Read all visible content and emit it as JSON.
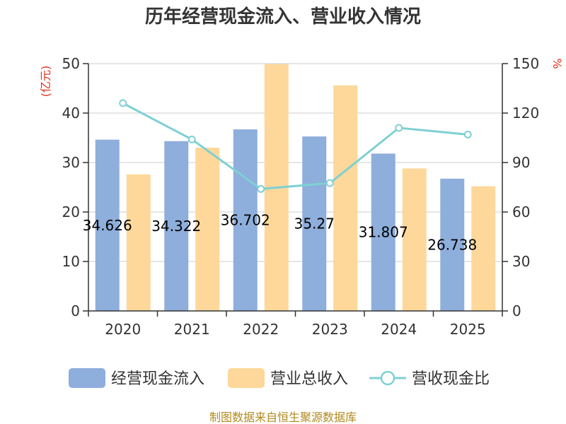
{
  "chart_data": {
    "type": "bar",
    "title": "历年经营现金流入、营业收入情况",
    "categories": [
      "2020",
      "2021",
      "2022",
      "2023",
      "2024",
      "2025"
    ],
    "series": [
      {
        "name": "经营现金流入",
        "kind": "bar",
        "axis": "left",
        "color": "#8eaedc",
        "values": [
          34.626,
          34.322,
          36.702,
          35.27,
          31.807,
          26.738
        ],
        "data_labels": [
          "34.626",
          "34.322",
          "36.702",
          "35.27",
          "31.807",
          "26.738"
        ]
      },
      {
        "name": "营业总收入",
        "kind": "bar",
        "axis": "left",
        "color": "#fdd89a",
        "values": [
          27.6,
          33.0,
          49.9,
          45.6,
          28.8,
          25.2
        ]
      },
      {
        "name": "营收现金比",
        "kind": "line",
        "axis": "right",
        "color": "#7fd0d4",
        "values": [
          126,
          104,
          74,
          77.5,
          111,
          107
        ]
      }
    ],
    "y_left": {
      "unit": "(亿元)",
      "range": [
        0,
        50
      ],
      "ticks": [
        "0",
        "10",
        "20",
        "30",
        "40",
        "50"
      ]
    },
    "y_right": {
      "unit": "%",
      "range": [
        0,
        150
      ],
      "ticks": [
        "0",
        "30",
        "60",
        "90",
        "120",
        "150"
      ]
    },
    "grid": true,
    "legend_position": "bottom"
  },
  "footer": {
    "source": "制图数据来自恒生聚源数据库"
  }
}
